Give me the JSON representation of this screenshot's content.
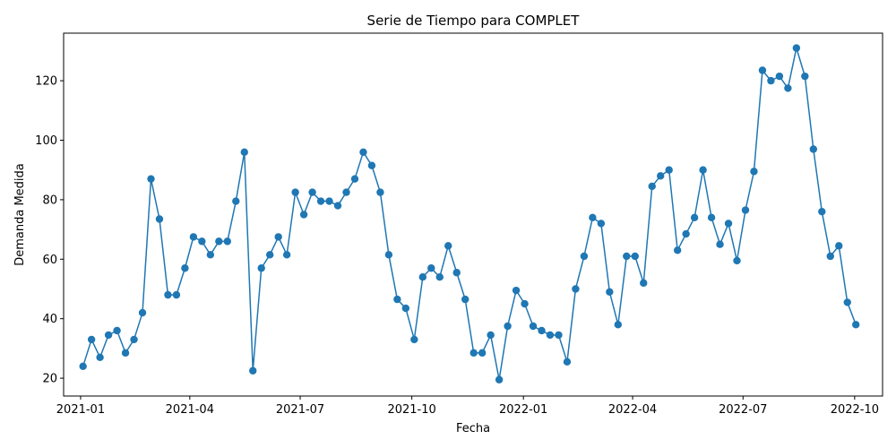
{
  "chart_data": {
    "type": "line",
    "title": "Serie de Tiempo para COMPLET",
    "xlabel": "Fecha",
    "ylabel": "Demanda Medida",
    "x_start": "2021-01-03",
    "x_step_days": 7,
    "xlim": [
      "2020-12-18",
      "2022-10-24"
    ],
    "ylim": [
      14,
      136
    ],
    "xticks": [
      {
        "date": "2021-01-01",
        "label": "2021-01"
      },
      {
        "date": "2021-04-01",
        "label": "2021-04"
      },
      {
        "date": "2021-07-01",
        "label": "2021-07"
      },
      {
        "date": "2021-10-01",
        "label": "2021-10"
      },
      {
        "date": "2022-01-01",
        "label": "2022-01"
      },
      {
        "date": "2022-04-01",
        "label": "2022-04"
      },
      {
        "date": "2022-07-01",
        "label": "2022-07"
      },
      {
        "date": "2022-10-01",
        "label": "2022-10"
      }
    ],
    "yticks": [
      20,
      40,
      60,
      80,
      100,
      120
    ],
    "grid": false,
    "series": [
      {
        "color": "#1f77b4",
        "marker": "circle",
        "values": [
          24,
          33,
          27,
          34.5,
          36,
          28.5,
          33,
          42,
          87,
          73.5,
          48,
          48,
          57,
          67.5,
          66,
          61.5,
          66,
          66,
          79.5,
          96,
          22.5,
          57,
          61.5,
          67.5,
          61.5,
          82.5,
          75,
          82.5,
          79.5,
          79.5,
          78,
          82.5,
          87,
          96,
          91.5,
          82.5,
          61.5,
          46.5,
          43.5,
          33,
          54,
          57,
          54,
          64.5,
          55.5,
          46.5,
          28.5,
          28.5,
          34.5,
          19.5,
          37.5,
          49.5,
          45,
          37.5,
          36,
          34.5,
          34.5,
          25.5,
          50,
          61,
          74,
          72,
          49,
          38,
          61,
          61,
          52,
          84.5,
          88,
          90,
          63,
          68.5,
          74,
          90,
          74,
          65,
          72,
          59.5,
          76.5,
          89.5,
          123.5,
          120,
          121.5,
          117.5,
          131,
          121.5,
          97,
          76,
          61,
          64.5,
          45.5,
          38
        ]
      }
    ]
  }
}
